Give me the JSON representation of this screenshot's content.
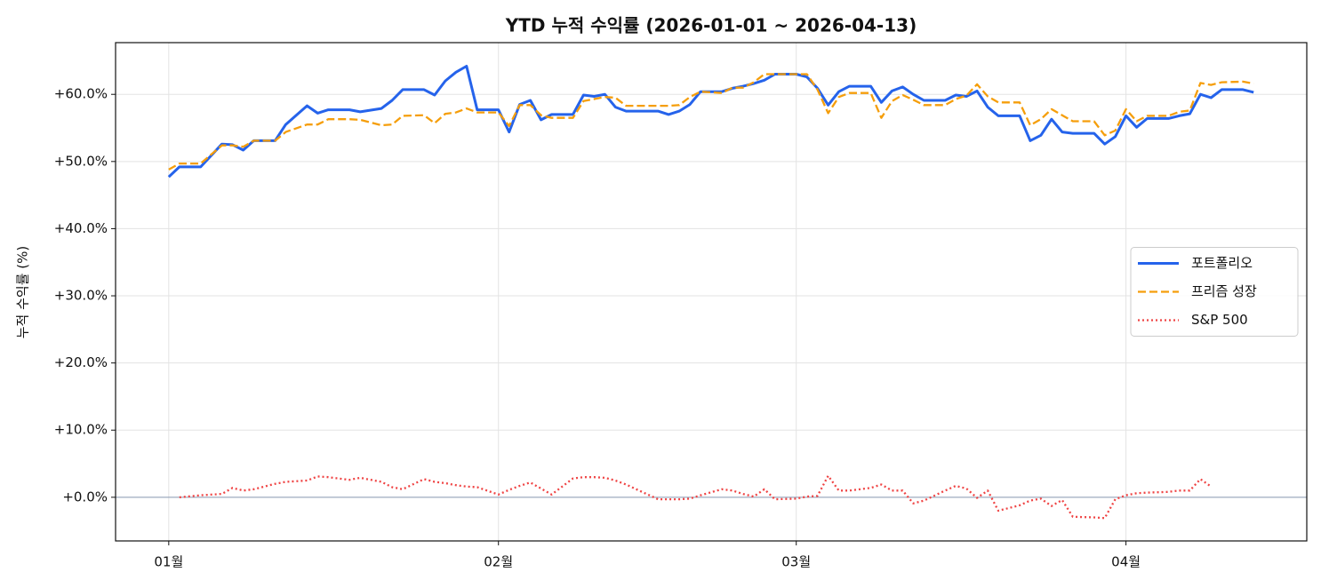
{
  "chart_data": {
    "type": "line",
    "title": "YTD 누적 수익률 (2026-01-01 ~ 2026-04-13)",
    "ylabel": "누적 수익률 (%)",
    "x": [
      "2026-01-01",
      "2026-01-02",
      "2026-01-04",
      "2026-01-06",
      "2026-01-07",
      "2026-01-08",
      "2026-01-09",
      "2026-01-11",
      "2026-01-12",
      "2026-01-14",
      "2026-01-15",
      "2026-01-16",
      "2026-01-18",
      "2026-01-19",
      "2026-01-21",
      "2026-01-22",
      "2026-01-23",
      "2026-01-25",
      "2026-01-26",
      "2026-01-27",
      "2026-01-28",
      "2026-01-29",
      "2026-01-30",
      "2026-02-01",
      "2026-02-02",
      "2026-02-03",
      "2026-02-04",
      "2026-02-05",
      "2026-02-06",
      "2026-02-08",
      "2026-02-09",
      "2026-02-10",
      "2026-02-11",
      "2026-02-12",
      "2026-02-13",
      "2026-02-16",
      "2026-02-17",
      "2026-02-18",
      "2026-02-19",
      "2026-02-20",
      "2026-02-22",
      "2026-02-23",
      "2026-02-24",
      "2026-02-25",
      "2026-02-26",
      "2026-02-27",
      "2026-03-01",
      "2026-03-02",
      "2026-03-03",
      "2026-03-04",
      "2026-03-05",
      "2026-03-06",
      "2026-03-08",
      "2026-03-09",
      "2026-03-10",
      "2026-03-11",
      "2026-03-12",
      "2026-03-13",
      "2026-03-15",
      "2026-03-16",
      "2026-03-17",
      "2026-03-18",
      "2026-03-19",
      "2026-03-20",
      "2026-03-22",
      "2026-03-23",
      "2026-03-24",
      "2026-03-25",
      "2026-03-26",
      "2026-03-27",
      "2026-03-29",
      "2026-03-30",
      "2026-03-31",
      "2026-04-01",
      "2026-04-02",
      "2026-04-03",
      "2026-04-05",
      "2026-04-06",
      "2026-04-07",
      "2026-04-08",
      "2026-04-09",
      "2026-04-10",
      "2026-04-12",
      "2026-04-13"
    ],
    "series": [
      {
        "name": "포트폴리오",
        "color": "#2563eb",
        "style": "solid",
        "values": [
          47.7,
          49.2,
          49.2,
          52.6,
          52.5,
          51.7,
          53.1,
          53.1,
          55.5,
          58.3,
          57.2,
          57.7,
          57.7,
          57.4,
          57.9,
          59.1,
          60.7,
          60.7,
          59.9,
          62.0,
          63.3,
          64.2,
          57.7,
          57.7,
          54.4,
          58.5,
          59.1,
          56.2,
          57.0,
          57.0,
          59.9,
          59.7,
          60.0,
          58.1,
          57.5,
          57.5,
          57.0,
          57.5,
          58.5,
          60.4,
          60.4,
          60.9,
          61.2,
          61.6,
          62.1,
          63.0,
          63.0,
          62.6,
          60.9,
          58.4,
          60.4,
          61.2,
          61.2,
          58.8,
          60.5,
          61.1,
          60.0,
          59.1,
          59.1,
          59.9,
          59.7,
          60.5,
          58.1,
          56.8,
          56.8,
          53.1,
          53.9,
          56.3,
          54.4,
          54.2,
          54.2,
          52.6,
          53.7,
          56.8,
          55.1,
          56.4,
          56.4,
          56.8,
          57.1,
          60.0,
          59.5,
          60.7,
          60.7,
          60.3
        ]
      },
      {
        "name": "프리즘 성장",
        "color": "#f59e0b",
        "style": "dashed",
        "values": [
          48.8,
          49.7,
          49.7,
          52.4,
          52.4,
          52.2,
          53.1,
          53.1,
          54.4,
          55.5,
          55.5,
          56.3,
          56.3,
          56.2,
          55.4,
          55.5,
          56.8,
          56.9,
          55.7,
          57.1,
          57.3,
          57.9,
          57.3,
          57.3,
          55.3,
          58.4,
          58.4,
          56.9,
          56.5,
          56.5,
          59.0,
          59.3,
          59.6,
          59.5,
          58.3,
          58.3,
          58.3,
          58.4,
          59.6,
          60.4,
          60.2,
          61.0,
          61.0,
          61.8,
          63.0,
          63.0,
          63.0,
          63.0,
          60.7,
          57.2,
          59.6,
          60.2,
          60.2,
          56.5,
          59.0,
          59.9,
          59.2,
          58.4,
          58.4,
          59.3,
          59.8,
          61.5,
          59.7,
          58.8,
          58.8,
          55.4,
          56.3,
          57.8,
          56.9,
          56.0,
          56.0,
          53.9,
          54.6,
          57.8,
          56.0,
          56.8,
          56.8,
          57.4,
          57.6,
          61.7,
          61.4,
          61.8,
          61.9,
          61.6
        ]
      },
      {
        "name": "S&P 500",
        "color": "#ef4444",
        "style": "dotted",
        "x": [
          "2026-01-02",
          "2026-01-04",
          "2026-01-06",
          "2026-01-07",
          "2026-01-08",
          "2026-01-09",
          "2026-01-11",
          "2026-01-12",
          "2026-01-14",
          "2026-01-15",
          "2026-01-16",
          "2026-01-18",
          "2026-01-19",
          "2026-01-21",
          "2026-01-22",
          "2026-01-23",
          "2026-01-25",
          "2026-01-26",
          "2026-01-27",
          "2026-01-28",
          "2026-01-29",
          "2026-01-30",
          "2026-02-01",
          "2026-02-02",
          "2026-02-03",
          "2026-02-04",
          "2026-02-05",
          "2026-02-06",
          "2026-02-08",
          "2026-02-09",
          "2026-02-10",
          "2026-02-11",
          "2026-02-12",
          "2026-02-13",
          "2026-02-16",
          "2026-02-17",
          "2026-02-18",
          "2026-02-19",
          "2026-02-20",
          "2026-02-22",
          "2026-02-23",
          "2026-02-24",
          "2026-02-25",
          "2026-02-26",
          "2026-02-27",
          "2026-03-01",
          "2026-03-02",
          "2026-03-03",
          "2026-03-04",
          "2026-03-05",
          "2026-03-06",
          "2026-03-08",
          "2026-03-09",
          "2026-03-10",
          "2026-03-11",
          "2026-03-12",
          "2026-03-13",
          "2026-03-15",
          "2026-03-16",
          "2026-03-17",
          "2026-03-18",
          "2026-03-19",
          "2026-03-20",
          "2026-03-22",
          "2026-03-23",
          "2026-03-24",
          "2026-03-25",
          "2026-03-26",
          "2026-03-27",
          "2026-03-29",
          "2026-03-30",
          "2026-03-31",
          "2026-04-01",
          "2026-04-02",
          "2026-04-03",
          "2026-04-05",
          "2026-04-06",
          "2026-04-07",
          "2026-04-08",
          "2026-04-09"
        ],
        "values": [
          0.0,
          0.3,
          0.5,
          1.4,
          1.0,
          1.2,
          2.0,
          2.3,
          2.5,
          3.1,
          3.0,
          2.6,
          2.9,
          2.3,
          1.5,
          1.2,
          2.7,
          2.3,
          2.1,
          1.8,
          1.6,
          1.5,
          0.4,
          1.1,
          1.7,
          2.2,
          1.3,
          0.4,
          2.8,
          3.0,
          3.0,
          2.9,
          2.5,
          1.9,
          -0.3,
          -0.3,
          -0.3,
          -0.2,
          0.3,
          1.2,
          1.0,
          0.5,
          0.1,
          1.2,
          -0.3,
          -0.2,
          0.1,
          0.2,
          3.2,
          1.0,
          1.0,
          1.4,
          1.9,
          1.0,
          1.0,
          -0.9,
          -0.5,
          1.0,
          1.7,
          1.3,
          -0.1,
          1.0,
          -2.0,
          -1.2,
          -0.5,
          -0.2,
          -1.3,
          -0.4,
          -2.9,
          -3.0,
          -3.1,
          -0.3,
          0.3,
          0.6,
          0.7,
          0.8,
          1.0,
          1.0,
          2.7,
          1.6
        ]
      }
    ],
    "xlim": [
      "2025-12-27",
      "2026-04-18"
    ],
    "xticks": [
      {
        "value": "2026-01-01",
        "label": "01월"
      },
      {
        "value": "2026-02-01",
        "label": "02월"
      },
      {
        "value": "2026-03-01",
        "label": "03월"
      },
      {
        "value": "2026-04-01",
        "label": "04월"
      }
    ],
    "ylim": [
      -6.5,
      67.7
    ],
    "yticks": [
      {
        "value": 0,
        "label": "+0.0%"
      },
      {
        "value": 10,
        "label": "+10.0%"
      },
      {
        "value": 20,
        "label": "+20.0%"
      },
      {
        "value": 30,
        "label": "+30.0%"
      },
      {
        "value": 40,
        "label": "+40.0%"
      },
      {
        "value": 50,
        "label": "+50.0%"
      },
      {
        "value": 60,
        "label": "+60.0%"
      }
    ],
    "hline": 0,
    "hline_color": "#8a9bb5",
    "grid": true,
    "legend": "center right"
  }
}
